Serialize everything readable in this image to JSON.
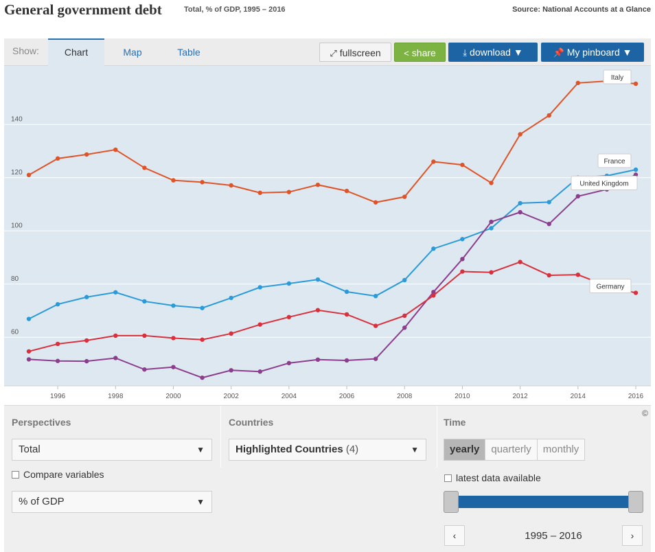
{
  "header": {
    "title": "General government debt",
    "subtitle": "Total, % of GDP, 1995 – 2016",
    "source": "Source: National Accounts at a Glance"
  },
  "tabs": {
    "show_label": "Show:",
    "items": [
      {
        "label": "Chart",
        "active": true
      },
      {
        "label": "Map",
        "active": false
      },
      {
        "label": "Table",
        "active": false
      }
    ]
  },
  "toolbar": {
    "fullscreen": "fullscreen",
    "share": "share",
    "download": "download ▼",
    "pinboard": "My pinboard ▼",
    "share_color": "#7cb342",
    "primary_color": "#1d64a4"
  },
  "chart_data": {
    "type": "line",
    "title": "",
    "xlabel": "",
    "ylabel": "",
    "x": [
      1995,
      1996,
      1997,
      1998,
      1999,
      2000,
      2001,
      2002,
      2003,
      2004,
      2005,
      2006,
      2007,
      2008,
      2009,
      2010,
      2011,
      2012,
      2013,
      2014,
      2015,
      2016
    ],
    "xticks": [
      1996,
      1998,
      2000,
      2002,
      2004,
      2006,
      2008,
      2010,
      2012,
      2014,
      2016
    ],
    "yticks": [
      60,
      80,
      100,
      120,
      140
    ],
    "ylim": [
      42,
      162
    ],
    "xlim": [
      1994.8,
      2016.5
    ],
    "grid": true,
    "background": "#dde8f1",
    "series": [
      {
        "name": "Italy",
        "color": "#e05326",
        "values": [
          121.0,
          127.2,
          128.7,
          130.5,
          123.7,
          119.0,
          118.3,
          117.1,
          114.3,
          114.6,
          117.3,
          115.0,
          110.7,
          112.8,
          126.0,
          124.8,
          118.0,
          136.3,
          143.4,
          155.6,
          156.3,
          155.3
        ]
      },
      {
        "name": "France",
        "color": "#2a9ad9",
        "values": [
          66.9,
          72.4,
          75.1,
          76.9,
          73.5,
          71.9,
          71.0,
          74.8,
          78.8,
          80.2,
          81.7,
          77.1,
          75.5,
          81.5,
          93.3,
          96.9,
          101.0,
          110.4,
          110.8,
          120.0,
          120.7,
          123.0
        ]
      },
      {
        "name": "United Kingdom",
        "color": "#8c3d8c",
        "values": [
          51.7,
          51.1,
          51.0,
          52.2,
          47.9,
          48.8,
          44.8,
          47.6,
          47.1,
          50.3,
          51.6,
          51.3,
          51.9,
          63.6,
          77.0,
          89.4,
          103.4,
          107.0,
          102.6,
          113.0,
          115.6,
          121.1
        ]
      },
      {
        "name": "Germany",
        "color": "#d9303c",
        "values": [
          54.7,
          57.5,
          58.8,
          60.6,
          60.6,
          59.7,
          59.1,
          61.4,
          64.8,
          67.6,
          70.2,
          68.6,
          64.3,
          68.1,
          75.7,
          84.7,
          84.4,
          88.3,
          83.3,
          83.5,
          79.3,
          76.7
        ]
      }
    ],
    "annotations": [
      "Italy",
      "France",
      "United Kingdom",
      "Germany"
    ]
  },
  "controls": {
    "perspectives_label": "Perspectives",
    "perspective_value": "Total",
    "compare_label": "Compare variables",
    "measure_value": "% of GDP",
    "countries_label": "Countries",
    "countries_value": "Highlighted Countries",
    "countries_count": "(4)",
    "time_label": "Time",
    "time_options": [
      "yearly",
      "quarterly",
      "monthly"
    ],
    "time_active": "yearly",
    "latest_label": "latest data available",
    "range_label": "1995 – 2016",
    "copyright": "©"
  }
}
